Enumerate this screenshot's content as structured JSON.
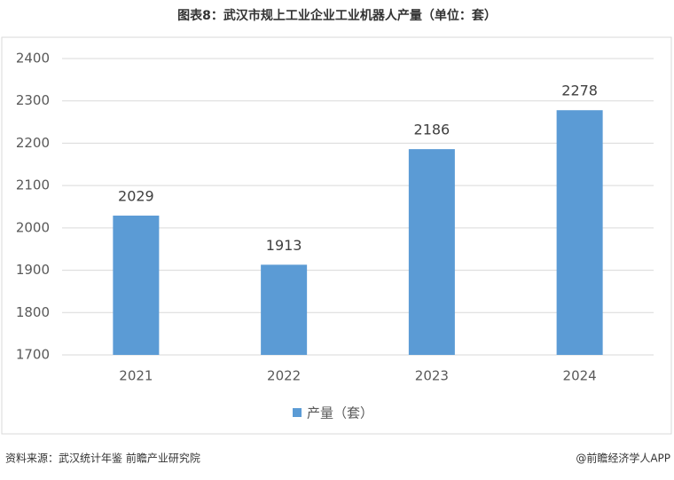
{
  "chart_data": {
    "type": "bar",
    "title": "图表8：武汉市规上工业企业工业机器人产量（单位：套）",
    "categories": [
      "2021",
      "2022",
      "2023",
      "2024"
    ],
    "series": [
      {
        "name": "产量（套）",
        "color": "#5b9bd5",
        "values": [
          2029,
          1913,
          2186,
          2278
        ]
      }
    ],
    "ylim": [
      1700,
      2400
    ],
    "yticks": [
      1700,
      1800,
      1900,
      2000,
      2100,
      2200,
      2300,
      2400
    ],
    "grid": true,
    "legend": "bottom",
    "source": "资料来源：武汉统计年鉴  前瞻产业研究院",
    "credit": "@前瞻经济学人APP"
  }
}
